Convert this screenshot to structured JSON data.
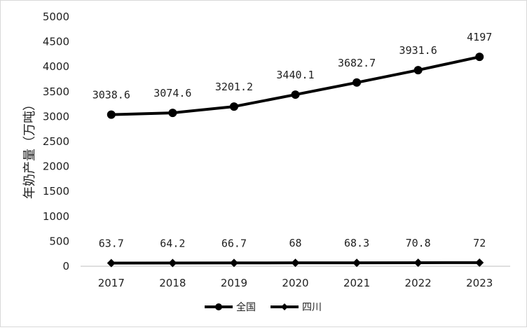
{
  "chart_data": {
    "type": "line",
    "title": "",
    "xlabel": "",
    "ylabel": "年奶产量（万吨）",
    "ylim": [
      0,
      5000
    ],
    "ytick_step": 500,
    "grid": false,
    "legend_position": "bottom",
    "x": [
      "2017",
      "2018",
      "2019",
      "2020",
      "2021",
      "2022",
      "2023"
    ],
    "series": [
      {
        "name": "全国",
        "marker": "circle",
        "color": "#000000",
        "values": [
          3038.6,
          3074.6,
          3201.2,
          3440.1,
          3682.7,
          3931.6,
          4197
        ],
        "labels": [
          "3038.6",
          "3074.6",
          "3201.2",
          "3440.1",
          "3682.7",
          "3931.6",
          "4197"
        ]
      },
      {
        "name": "四川",
        "marker": "diamond",
        "color": "#000000",
        "values": [
          63.7,
          64.2,
          66.7,
          68,
          68.3,
          70.8,
          72
        ],
        "labels": [
          "63.7",
          "64.2",
          "66.7",
          "68",
          "68.3",
          "70.8",
          "72"
        ]
      }
    ]
  }
}
